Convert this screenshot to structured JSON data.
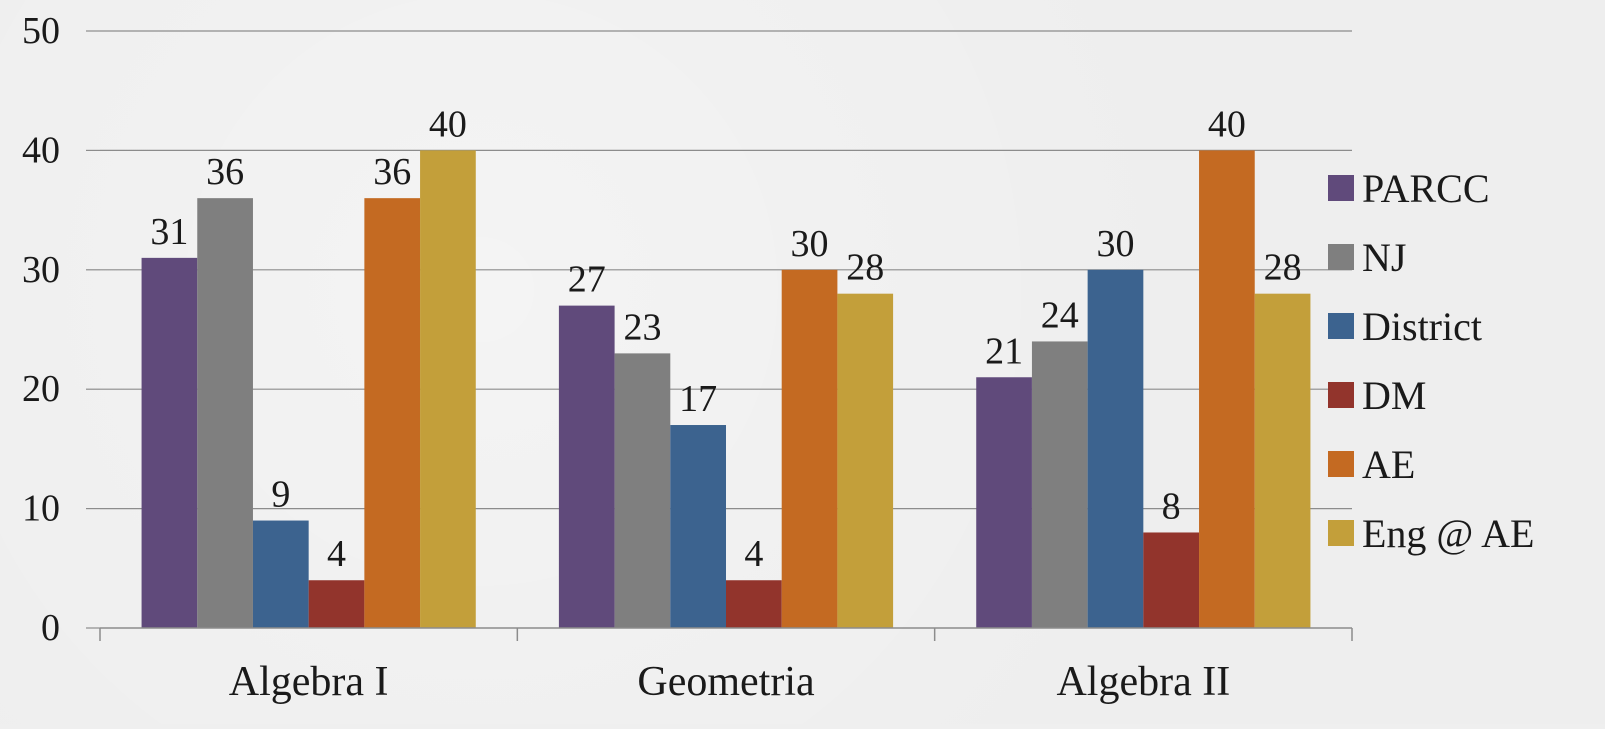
{
  "chart_data": {
    "type": "bar",
    "categories": [
      "Algebra I",
      "Geometria",
      "Algebra II"
    ],
    "series": [
      {
        "name": "PARCC",
        "color": "#604a7b",
        "values": [
          31,
          27,
          21
        ]
      },
      {
        "name": "NJ",
        "color": "#7f7f7f",
        "values": [
          36,
          23,
          24
        ]
      },
      {
        "name": "District",
        "color": "#3c638f",
        "values": [
          9,
          17,
          30
        ]
      },
      {
        "name": "DM",
        "color": "#92342c",
        "values": [
          4,
          4,
          8
        ]
      },
      {
        "name": "AE",
        "color": "#c46a22",
        "values": [
          36,
          30,
          40
        ]
      },
      {
        "name": "Eng @ AE",
        "color": "#c39f3a",
        "values": [
          40,
          28,
          28
        ]
      }
    ],
    "ylim": [
      0,
      50
    ],
    "yticks": [
      "0",
      "10",
      "20",
      "30",
      "40",
      "50"
    ],
    "grid": true,
    "data_labels": true,
    "legend_position": "right"
  }
}
